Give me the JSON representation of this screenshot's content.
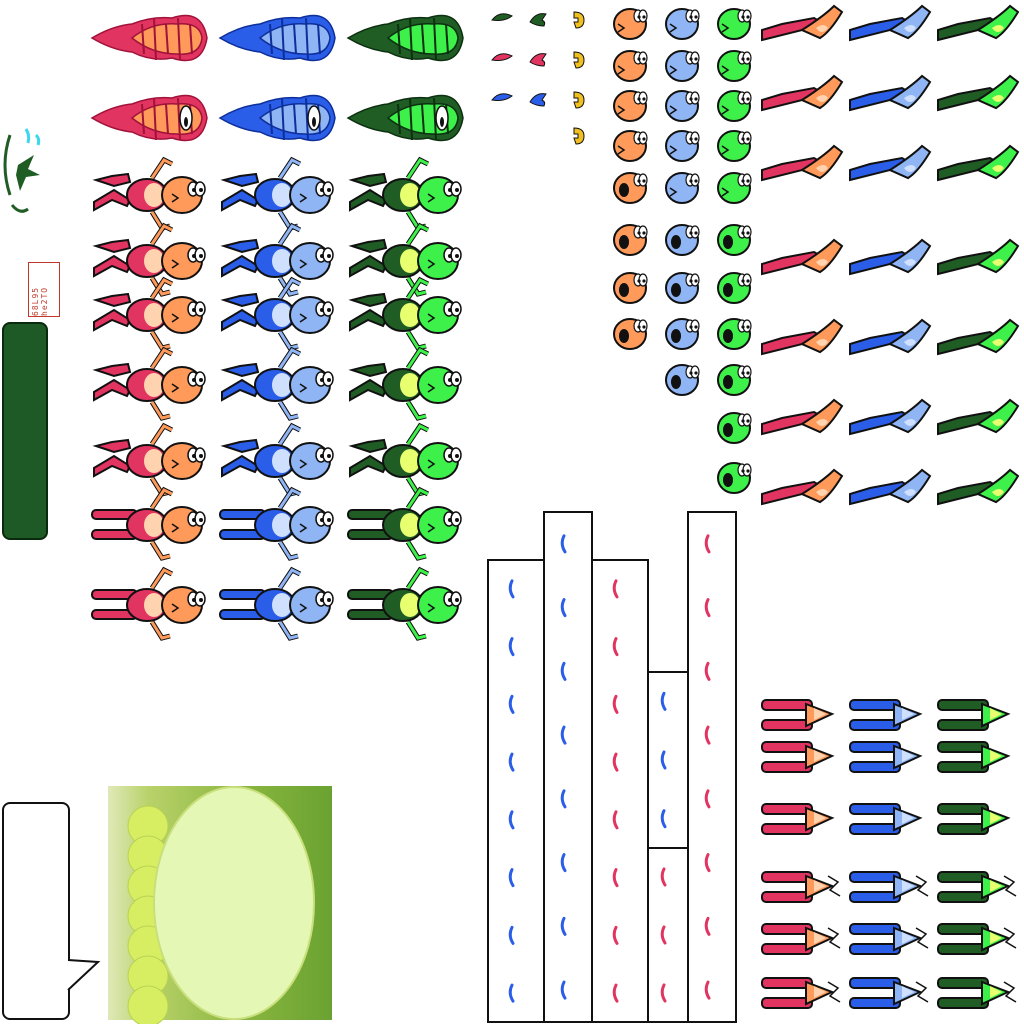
{
  "sheet": {
    "title": "",
    "score_readout": "68L95 he2TO",
    "palettes": {
      "red": {
        "name": "red",
        "body": "#e23460",
        "head": "#ff9a5a",
        "dark": "#a0123a",
        "light": "#ffd3b0"
      },
      "blue": {
        "name": "blue",
        "body": "#2a5de8",
        "head": "#8fb5f5",
        "dark": "#0e2f9a",
        "light": "#cfe0ff"
      },
      "green": {
        "name": "green",
        "body": "#1f5d25",
        "head": "#3ef04a",
        "dark": "#0c3010",
        "light": "#e8ff70"
      }
    },
    "sprite_groups": [
      {
        "name": "flame-trails",
        "count": 6
      },
      {
        "name": "frog-run-side",
        "count": 27
      },
      {
        "name": "frog-heads",
        "count": 27
      },
      {
        "name": "frog-legs-diagonal",
        "count": 21
      },
      {
        "name": "frog-legs-upright",
        "count": 18
      },
      {
        "name": "small-tokens",
        "count": 12
      }
    ],
    "ui": {
      "speech_bubble_text": "",
      "green_bar_text": ""
    }
  }
}
